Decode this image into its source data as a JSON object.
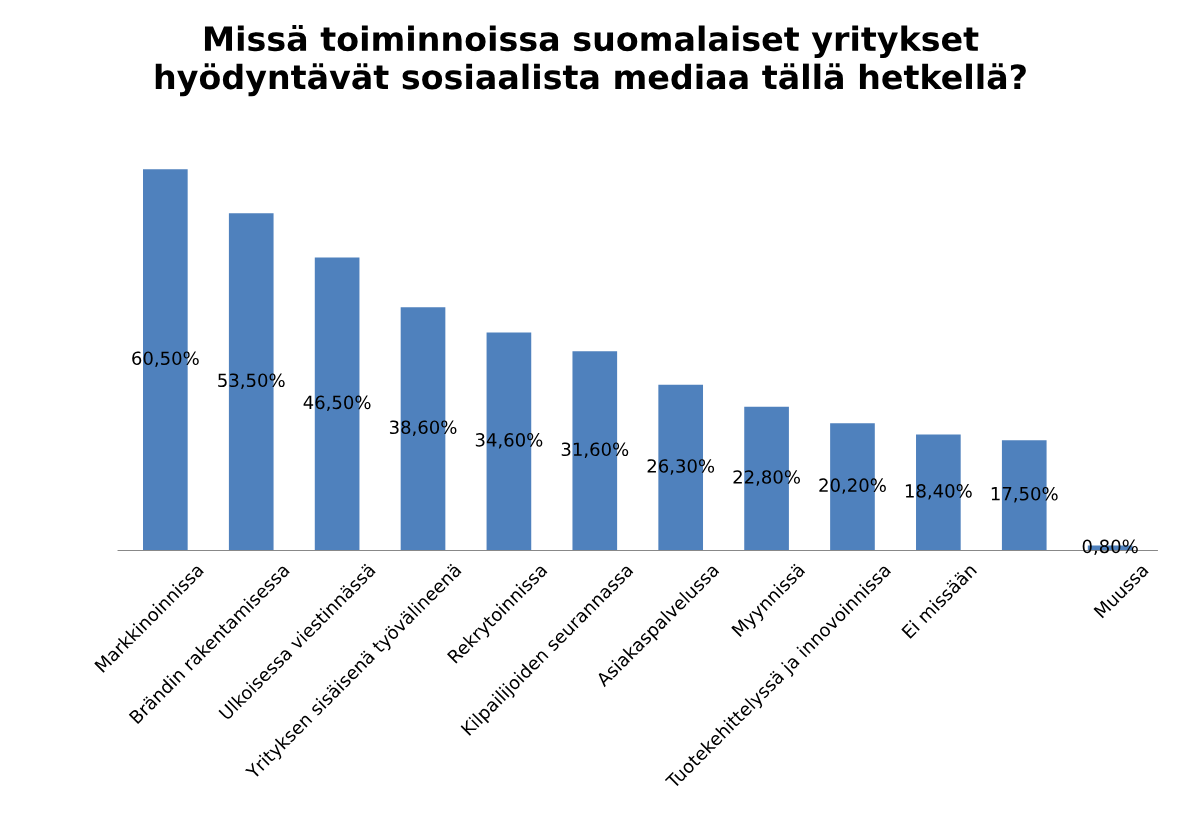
{
  "chart_data": {
    "type": "bar",
    "title": "Missä toiminnoissa suomalaiset yritykset\nhyödyntävät sosiaalista mediaa tällä hetkellä?",
    "categories": [
      "Markkinoinnissa",
      "Brändin rakentamisessa",
      "Ulkoisessa viestinnässä",
      "Yrityksen sisäisenä työvälineenä",
      "Rekrytoinnissa",
      "Kilpailijoiden seurannassa",
      "Asiakaspalvelussa",
      "Myynnissä",
      "Tuotekehittelyssä ja innovoinnissa",
      "Ei missään",
      null,
      "Muussa"
    ],
    "values": [
      60.5,
      53.5,
      46.5,
      38.6,
      34.6,
      31.6,
      26.3,
      22.8,
      20.2,
      18.4,
      17.5,
      0.8
    ],
    "value_labels": [
      "60,50%",
      "53,50%",
      "46,50%",
      "38,60%",
      "34,60%",
      "31,60%",
      "26,30%",
      "22,80%",
      "20,20%",
      "18,40%",
      "17,50%",
      "0,80%"
    ],
    "color": "#4f81bd",
    "grid": false,
    "legend": false
  }
}
